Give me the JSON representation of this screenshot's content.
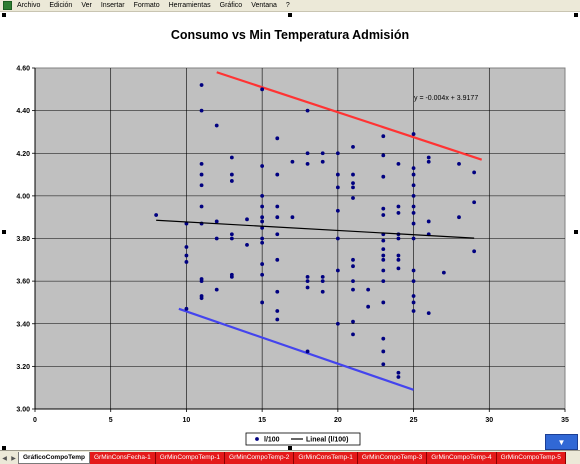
{
  "menubar": {
    "items": [
      "Archivo",
      "Edición",
      "Ver",
      "Insertar",
      "Formato",
      "Herramientas",
      "Gráfico",
      "Ventana",
      "?"
    ]
  },
  "sheet_tabs": {
    "active": "GráficoCompoTemp",
    "others": [
      "GrMinConsFecha-1",
      "GrMinCompoTemp-1",
      "GrMinCompoTemp-2",
      "GrMinConsTemp-1",
      "GrMinCompoTemp-3",
      "GrMinCompoTemp-4",
      "GrMinCompoTemp-5"
    ]
  },
  "colors": {
    "plot_bg": "#c0c0c0",
    "points": "#000080",
    "trend": "#000000",
    "upper_line": "#ff3333",
    "lower_line": "#4444ee",
    "gridline": "#000000"
  },
  "chart_data": {
    "type": "scatter",
    "title": "Consumo vs Min Temperatura Admisión",
    "xlabel": "",
    "ylabel": "",
    "xlim": [
      0,
      35
    ],
    "ylim": [
      3.0,
      4.6
    ],
    "xticks": [
      0,
      5,
      10,
      15,
      20,
      25,
      30,
      35
    ],
    "yticks": [
      3.0,
      3.2,
      3.4,
      3.6,
      3.8,
      4.0,
      4.2,
      4.4,
      4.6
    ],
    "ytick_labels": [
      "3.00",
      "3.20",
      "3.40",
      "3.60",
      "3.80",
      "4.00",
      "4.20",
      "4.40",
      "4.60"
    ],
    "grid": true,
    "legend_position": "bottom",
    "series": [
      {
        "name": "l/100",
        "points": [
          [
            8,
            3.91
          ],
          [
            10,
            3.87
          ],
          [
            10,
            3.76
          ],
          [
            10,
            3.72
          ],
          [
            10,
            3.69
          ],
          [
            10,
            3.47
          ],
          [
            11,
            4.52
          ],
          [
            11,
            4.4
          ],
          [
            11,
            4.15
          ],
          [
            11,
            4.1
          ],
          [
            11,
            4.05
          ],
          [
            11,
            3.95
          ],
          [
            11,
            3.87
          ],
          [
            11,
            3.61
          ],
          [
            11,
            3.6
          ],
          [
            11,
            3.53
          ],
          [
            11,
            3.52
          ],
          [
            12,
            4.33
          ],
          [
            12,
            3.88
          ],
          [
            12,
            3.8
          ],
          [
            12,
            3.56
          ],
          [
            13,
            4.18
          ],
          [
            13,
            4.1
          ],
          [
            13,
            4.07
          ],
          [
            13,
            3.82
          ],
          [
            13,
            3.8
          ],
          [
            13,
            3.63
          ],
          [
            13,
            3.62
          ],
          [
            14,
            3.89
          ],
          [
            14,
            3.77
          ],
          [
            15,
            4.5
          ],
          [
            15,
            4.14
          ],
          [
            15,
            4.0
          ],
          [
            15,
            3.95
          ],
          [
            15,
            3.9
          ],
          [
            15,
            3.88
          ],
          [
            15,
            3.85
          ],
          [
            15,
            3.8
          ],
          [
            15,
            3.78
          ],
          [
            15,
            3.68
          ],
          [
            15,
            3.63
          ],
          [
            15,
            3.5
          ],
          [
            16,
            4.27
          ],
          [
            16,
            4.1
          ],
          [
            16,
            3.95
          ],
          [
            16,
            3.9
          ],
          [
            16,
            3.82
          ],
          [
            16,
            3.7
          ],
          [
            16,
            3.55
          ],
          [
            16,
            3.46
          ],
          [
            16,
            3.42
          ],
          [
            17,
            4.16
          ],
          [
            17,
            3.9
          ],
          [
            18,
            4.4
          ],
          [
            18,
            4.2
          ],
          [
            18,
            4.15
          ],
          [
            18,
            3.62
          ],
          [
            18,
            3.6
          ],
          [
            18,
            3.57
          ],
          [
            18,
            3.27
          ],
          [
            19,
            4.2
          ],
          [
            19,
            4.16
          ],
          [
            19,
            3.62
          ],
          [
            19,
            3.6
          ],
          [
            19,
            3.55
          ],
          [
            20,
            4.2
          ],
          [
            20,
            4.1
          ],
          [
            20,
            4.04
          ],
          [
            20,
            3.93
          ],
          [
            20,
            3.8
          ],
          [
            20,
            3.65
          ],
          [
            20,
            3.4
          ],
          [
            21,
            4.23
          ],
          [
            21,
            4.1
          ],
          [
            21,
            4.06
          ],
          [
            21,
            4.04
          ],
          [
            21,
            3.99
          ],
          [
            21,
            3.7
          ],
          [
            21,
            3.67
          ],
          [
            21,
            3.6
          ],
          [
            21,
            3.56
          ],
          [
            21,
            3.41
          ],
          [
            21,
            3.35
          ],
          [
            22,
            3.56
          ],
          [
            22,
            3.48
          ],
          [
            23,
            4.28
          ],
          [
            23,
            4.19
          ],
          [
            23,
            4.09
          ],
          [
            23,
            3.94
          ],
          [
            23,
            3.91
          ],
          [
            23,
            3.82
          ],
          [
            23,
            3.79
          ],
          [
            23,
            3.75
          ],
          [
            23,
            3.72
          ],
          [
            23,
            3.7
          ],
          [
            23,
            3.65
          ],
          [
            23,
            3.6
          ],
          [
            23,
            3.5
          ],
          [
            23,
            3.33
          ],
          [
            23,
            3.27
          ],
          [
            23,
            3.21
          ],
          [
            24,
            4.15
          ],
          [
            24,
            3.95
          ],
          [
            24,
            3.92
          ],
          [
            24,
            3.82
          ],
          [
            24,
            3.8
          ],
          [
            24,
            3.72
          ],
          [
            24,
            3.7
          ],
          [
            24,
            3.66
          ],
          [
            24,
            3.17
          ],
          [
            24,
            3.15
          ],
          [
            25,
            4.29
          ],
          [
            25,
            4.13
          ],
          [
            25,
            4.1
          ],
          [
            25,
            4.05
          ],
          [
            25,
            4.0
          ],
          [
            25,
            3.95
          ],
          [
            25,
            3.92
          ],
          [
            25,
            3.87
          ],
          [
            25,
            3.8
          ],
          [
            25,
            3.65
          ],
          [
            25,
            3.6
          ],
          [
            25,
            3.53
          ],
          [
            25,
            3.5
          ],
          [
            25,
            3.46
          ],
          [
            26,
            4.18
          ],
          [
            26,
            4.16
          ],
          [
            26,
            3.88
          ],
          [
            26,
            3.82
          ],
          [
            26,
            3.45
          ],
          [
            27,
            3.64
          ],
          [
            28,
            4.15
          ],
          [
            28,
            3.9
          ],
          [
            29,
            4.11
          ],
          [
            29,
            3.97
          ],
          [
            29,
            3.74
          ]
        ]
      },
      {
        "name": "Lineal (l/100)",
        "type": "trendline",
        "equation": "y = -0.004x + 3.9177",
        "slope": -0.004,
        "intercept": 3.9177,
        "x_range": [
          8,
          29
        ]
      }
    ],
    "annotation_lines": [
      {
        "role": "upper",
        "from": [
          12,
          4.58
        ],
        "to": [
          29.5,
          4.17
        ]
      },
      {
        "role": "lower",
        "from": [
          9.5,
          3.47
        ],
        "to": [
          25,
          3.09
        ]
      }
    ]
  }
}
